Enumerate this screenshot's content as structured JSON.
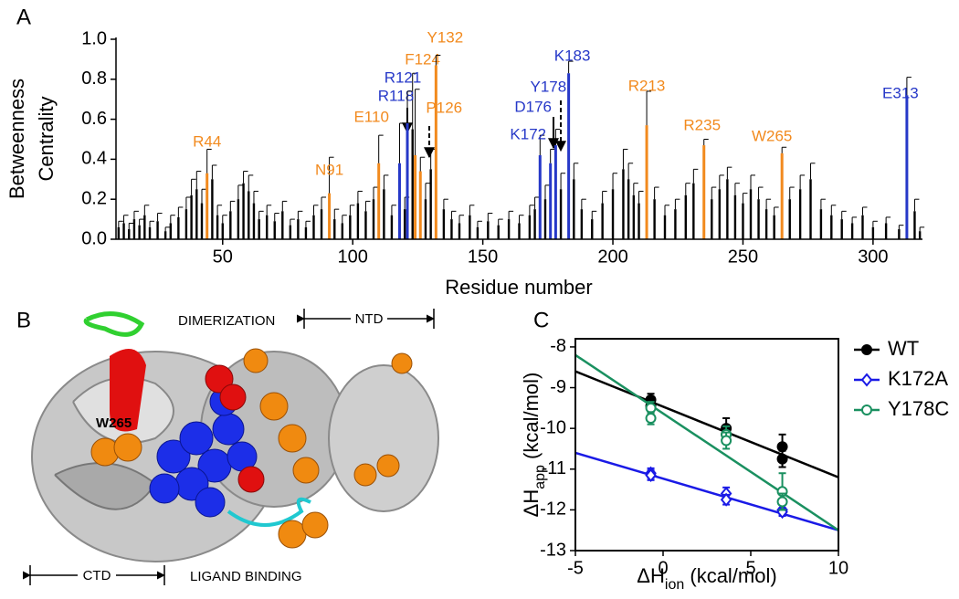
{
  "chart_data": [
    {
      "type": "bar",
      "panel": "A",
      "ylabel": [
        "Betweenness",
        "Centrality"
      ],
      "xlabel": "Residue number",
      "xlim": [
        9,
        319
      ],
      "ylim": [
        0,
        1
      ],
      "xticks": [
        50,
        100,
        150,
        200,
        250,
        300
      ],
      "yticks": [
        {
          "value": 0,
          "label": "0.0"
        },
        0.2,
        0.4,
        0.6,
        0.8,
        {
          "value": 1,
          "label": "1.0"
        }
      ],
      "color": "#000000",
      "x": [
        10,
        12,
        14,
        16,
        18,
        20,
        22,
        25,
        28,
        30,
        33,
        36,
        38,
        40,
        42,
        46,
        48,
        50,
        53,
        56,
        58,
        60,
        62,
        64,
        67,
        70,
        73,
        76,
        79,
        82,
        85,
        88,
        93,
        96,
        99,
        102,
        105,
        108,
        112,
        115,
        120,
        123,
        128,
        130,
        135,
        138,
        141,
        145,
        148,
        152,
        156,
        160,
        164,
        168,
        170,
        174,
        180,
        185,
        188,
        192,
        196,
        200,
        204,
        206,
        208,
        210,
        216,
        220,
        224,
        228,
        231,
        238,
        241,
        244,
        247,
        250,
        253,
        256,
        259,
        262,
        268,
        272,
        276,
        280,
        284,
        288,
        292,
        296,
        300,
        305,
        310,
        316,
        318
      ],
      "values": [
        0.06,
        0.08,
        0.05,
        0.1,
        0.07,
        0.12,
        0.06,
        0.09,
        0.04,
        0.08,
        0.11,
        0.15,
        0.22,
        0.25,
        0.18,
        0.3,
        0.12,
        0.08,
        0.14,
        0.2,
        0.28,
        0.24,
        0.18,
        0.1,
        0.12,
        0.09,
        0.14,
        0.07,
        0.1,
        0.06,
        0.12,
        0.15,
        0.1,
        0.08,
        0.12,
        0.18,
        0.14,
        0.2,
        0.25,
        0.12,
        0.15,
        0.55,
        0.2,
        0.35,
        0.15,
        0.1,
        0.08,
        0.12,
        0.06,
        0.09,
        0.07,
        0.1,
        0.08,
        0.12,
        0.15,
        0.2,
        0.25,
        0.3,
        0.15,
        0.1,
        0.18,
        0.25,
        0.35,
        0.3,
        0.22,
        0.18,
        0.2,
        0.12,
        0.15,
        0.22,
        0.28,
        0.2,
        0.25,
        0.3,
        0.22,
        0.18,
        0.25,
        0.2,
        0.15,
        0.12,
        0.2,
        0.25,
        0.3,
        0.15,
        0.12,
        0.1,
        0.08,
        0.12,
        0.06,
        0.08,
        0.05,
        0.14,
        0.04
      ],
      "errors": [
        0.03,
        0.04,
        0.03,
        0.04,
        0.03,
        0.05,
        0.03,
        0.04,
        0.02,
        0.04,
        0.05,
        0.06,
        0.08,
        0.09,
        0.07,
        0.07,
        0.05,
        0.04,
        0.05,
        0.07,
        0.06,
        0.08,
        0.06,
        0.04,
        0.05,
        0.04,
        0.05,
        0.03,
        0.04,
        0.03,
        0.05,
        0.06,
        0.05,
        0.04,
        0.05,
        0.06,
        0.05,
        0.06,
        0.07,
        0.05,
        0.06,
        0.28,
        0.08,
        0.1,
        0.05,
        0.04,
        0.04,
        0.05,
        0.03,
        0.04,
        0.03,
        0.04,
        0.04,
        0.05,
        0.06,
        0.07,
        0.08,
        0.08,
        0.05,
        0.04,
        0.06,
        0.08,
        0.1,
        0.08,
        0.06,
        0.06,
        0.06,
        0.05,
        0.05,
        0.06,
        0.07,
        0.06,
        0.07,
        0.06,
        0.06,
        0.05,
        0.07,
        0.06,
        0.05,
        0.04,
        0.06,
        0.07,
        0.08,
        0.05,
        0.05,
        0.04,
        0.03,
        0.04,
        0.03,
        0.03,
        0.02,
        0.06,
        0.02
      ],
      "highlights": [
        {
          "label": "R44",
          "x": 44,
          "value": 0.33,
          "error": 0.12,
          "color": "#f28a1e"
        },
        {
          "label": "N91",
          "x": 91,
          "value": 0.23,
          "error": 0.18,
          "color": "#f28a1e"
        },
        {
          "label": "E110",
          "x": 110,
          "value": 0.38,
          "error": 0.14,
          "color": "#f28a1e"
        },
        {
          "label": "R118",
          "x": 118,
          "value": 0.38,
          "error": 0.2,
          "color": "#2638c8"
        },
        {
          "label": "R121",
          "x": 121,
          "value": 0.58,
          "error": 0.16,
          "color": "#2638c8"
        },
        {
          "label": "F124",
          "x": 124,
          "value": 0.42,
          "error": 0.33,
          "color": "#f28a1e"
        },
        {
          "label": "P126",
          "x": 126,
          "value": 0.34,
          "error": 0.07,
          "color": "#f28a1e"
        },
        {
          "label": "Y132",
          "x": 132,
          "value": 0.87,
          "error": 0.05,
          "color": "#f28a1e"
        },
        {
          "label": "K172",
          "x": 172,
          "value": 0.42,
          "error": 0.1,
          "color": "#2638c8"
        },
        {
          "label": "D176",
          "x": 176,
          "value": 0.38,
          "error": 0.07,
          "color": "#2638c8"
        },
        {
          "label": "Y178",
          "x": 178,
          "value": 0.47,
          "error": 0.08,
          "color": "#2638c8"
        },
        {
          "label": "K183",
          "x": 183,
          "value": 0.83,
          "error": 0.06,
          "color": "#2638c8"
        },
        {
          "label": "R213",
          "x": 213,
          "value": 0.57,
          "error": 0.17,
          "color": "#f28a1e"
        },
        {
          "label": "R235",
          "x": 235,
          "value": 0.47,
          "error": 0.03,
          "color": "#f28a1e"
        },
        {
          "label": "W265",
          "x": 265,
          "value": 0.43,
          "error": 0.03,
          "color": "#f28a1e"
        },
        {
          "label": "E313",
          "x": 313,
          "value": 0.72,
          "error": 0.09,
          "color": "#2638c8"
        }
      ]
    },
    {
      "type": "scatter",
      "panel": "C",
      "xlabel": {
        "main": "ΔH",
        "sub": "ion",
        "unit": " (kcal/mol)"
      },
      "ylabel": {
        "main": "ΔH",
        "sub": "app",
        "unit": " (kcal/mol)"
      },
      "xlim": [
        -5,
        10
      ],
      "ylim": [
        -13,
        -7.8
      ],
      "xticks": [
        -5,
        0,
        5,
        10
      ],
      "yticks": [
        -13,
        -12,
        -11,
        -10,
        -9,
        -8
      ],
      "series": [
        {
          "name": "WT",
          "color": "#000000",
          "marker": "filled-circle",
          "x": [
            -0.7,
            -0.7,
            3.6,
            3.6,
            6.8,
            6.8
          ],
          "values": [
            -9.3,
            -9.45,
            -10.0,
            -10.15,
            -10.45,
            -10.75
          ],
          "errors": [
            0.15,
            0.15,
            0.25,
            0.2,
            0.3,
            0.2
          ],
          "fit_x": [
            -5,
            10
          ],
          "fit_y": [
            -8.6,
            -11.2
          ]
        },
        {
          "name": "K172A",
          "color": "#1a1ae6",
          "marker": "open-diamond",
          "x": [
            -0.7,
            -0.7,
            3.6,
            3.6,
            6.8,
            6.8
          ],
          "values": [
            -11.1,
            -11.15,
            -11.6,
            -11.75,
            -12.0,
            -12.05
          ],
          "errors": [
            0.12,
            0.12,
            0.15,
            0.12,
            0.12,
            0.1
          ],
          "fit_x": [
            -5,
            10
          ],
          "fit_y": [
            -10.6,
            -12.5
          ]
        },
        {
          "name": "Y178C",
          "color": "#1a9060",
          "marker": "open-circle",
          "x": [
            -0.7,
            -0.7,
            3.6,
            3.6,
            6.8,
            6.8
          ],
          "values": [
            -9.5,
            -9.75,
            -10.15,
            -10.3,
            -11.55,
            -11.8
          ],
          "errors": [
            0.15,
            0.15,
            0.2,
            0.2,
            0.45,
            0.2
          ],
          "fit_x": [
            -5,
            10
          ],
          "fit_y": [
            -8.2,
            -12.5
          ]
        }
      ]
    }
  ],
  "figure_b": {
    "panel": "B",
    "labels": {
      "dimerization": "DIMERIZATION",
      "ntd": "NTD",
      "w265": "W265",
      "ctd": "CTD",
      "ligand": "LIGAND BINDING"
    }
  }
}
